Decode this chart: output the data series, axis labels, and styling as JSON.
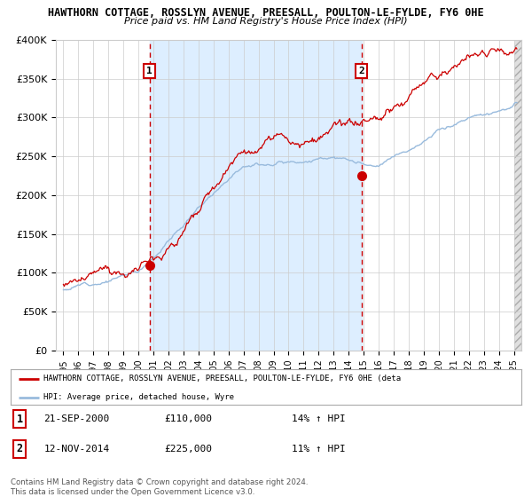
{
  "title_line1": "HAWTHORN COTTAGE, ROSSLYN AVENUE, PREESALL, POULTON-LE-FYLDE, FY6 0HE",
  "title_line2": "Price paid vs. HM Land Registry's House Price Index (HPI)",
  "bg_color": "#ffffff",
  "shaded_region_color": "#ddeeff",
  "grid_color": "#cccccc",
  "red_line_color": "#cc0000",
  "blue_line_color": "#99bbdd",
  "dashed_line_color": "#cc0000",
  "marker_color": "#cc0000",
  "sale1_date_num": 2000.73,
  "sale1_price": 110000,
  "sale1_label": "1",
  "sale2_date_num": 2014.87,
  "sale2_price": 225000,
  "sale2_label": "2",
  "ylim_min": 0,
  "ylim_max": 400000,
  "yticks": [
    0,
    50000,
    100000,
    150000,
    200000,
    250000,
    300000,
    350000,
    400000
  ],
  "ytick_labels": [
    "£0",
    "£50K",
    "£100K",
    "£150K",
    "£200K",
    "£250K",
    "£300K",
    "£350K",
    "£400K"
  ],
  "xlim_min": 1994.5,
  "xlim_max": 2025.5,
  "xtick_years": [
    1995,
    1996,
    1997,
    1998,
    1999,
    2000,
    2001,
    2002,
    2003,
    2004,
    2005,
    2006,
    2007,
    2008,
    2009,
    2010,
    2011,
    2012,
    2013,
    2014,
    2015,
    2016,
    2017,
    2018,
    2019,
    2020,
    2021,
    2022,
    2023,
    2024,
    2025
  ],
  "legend_red_label": "HAWTHORN COTTAGE, ROSSLYN AVENUE, PREESALL, POULTON-LE-FYLDE, FY6 0HE (deta",
  "legend_blue_label": "HPI: Average price, detached house, Wyre",
  "note1_label": "1",
  "note1_date": "21-SEP-2000",
  "note1_price": "£110,000",
  "note1_hpi": "14% ↑ HPI",
  "note2_label": "2",
  "note2_date": "12-NOV-2014",
  "note2_price": "£225,000",
  "note2_hpi": "11% ↑ HPI",
  "footer": "Contains HM Land Registry data © Crown copyright and database right 2024.\nThis data is licensed under the Open Government Licence v3.0."
}
